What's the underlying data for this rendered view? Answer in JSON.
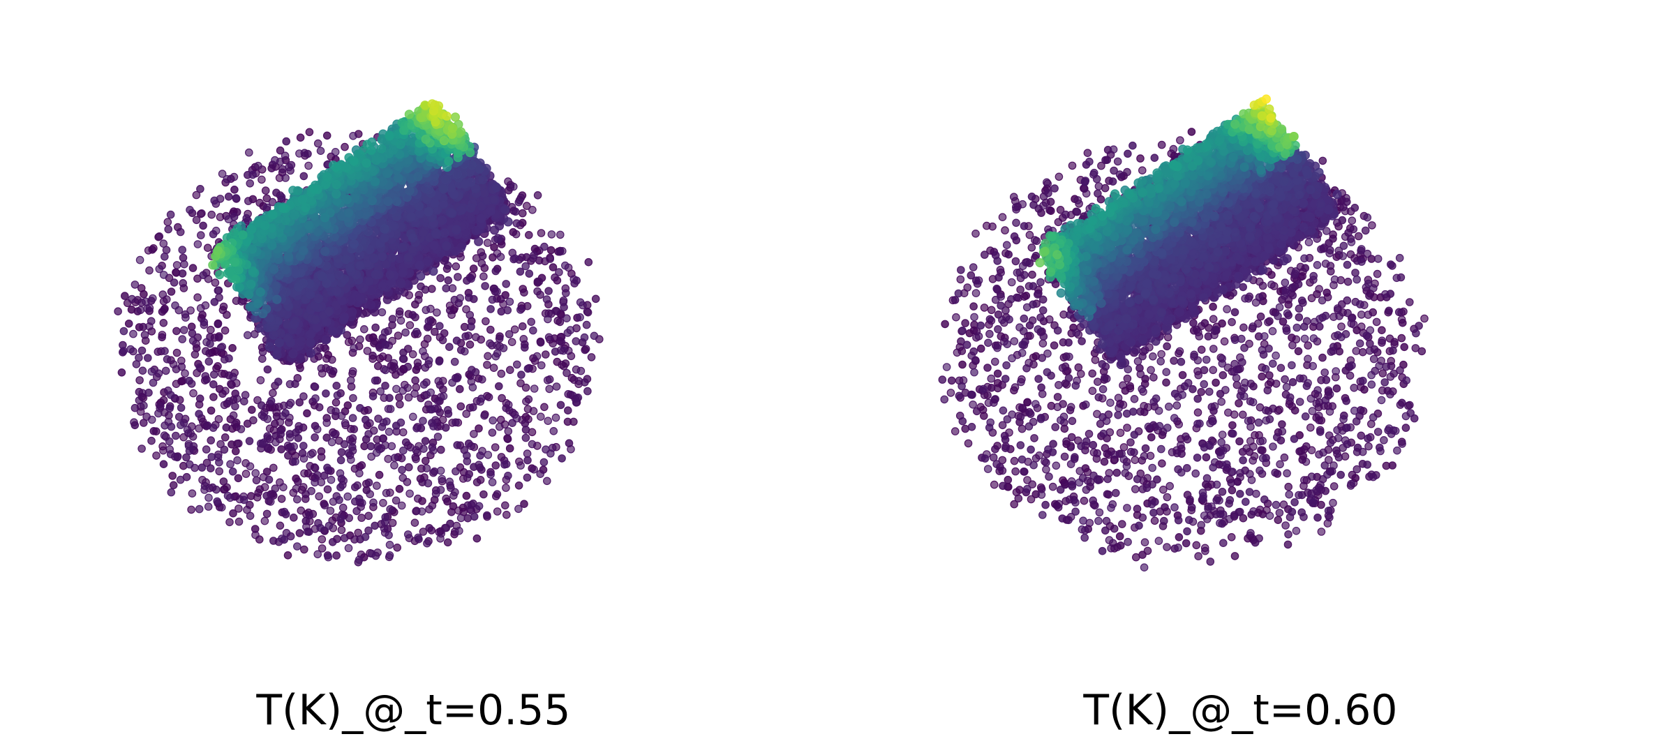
{
  "chart_data": [
    {
      "type": "scatter",
      "title": "T(K)_@_t=0.55",
      "axes_visible": false,
      "grid": false,
      "colormap": "viridis",
      "colormap_stops": [
        "#440154",
        "#482878",
        "#3e4989",
        "#31688e",
        "#26828e",
        "#1f9e89",
        "#35b779",
        "#6ece58",
        "#b5de2b",
        "#fde725"
      ],
      "point_alpha": 0.7,
      "description_of_points": "3D particle cloud (~6000 points) viewed in perspective; dense elongated diagonal band with higher values (teal/green, peak yellow near upper-right end) surrounded by sparse low-value (dark purple) points",
      "seed": 55
    },
    {
      "type": "scatter",
      "title": "T(K)_@_t=0.60",
      "axes_visible": false,
      "grid": false,
      "colormap": "viridis",
      "colormap_stops": [
        "#440154",
        "#482878",
        "#3e4989",
        "#31688e",
        "#26828e",
        "#1f9e89",
        "#35b779",
        "#6ece58",
        "#b5de2b",
        "#fde725"
      ],
      "point_alpha": 0.7,
      "description_of_points": "3D particle cloud (~6000 points) viewed in perspective; dense elongated diagonal band with higher values (teal/green, peak yellow near upper-right end) surrounded by sparse low-value (dark purple) points",
      "seed": 60
    }
  ]
}
